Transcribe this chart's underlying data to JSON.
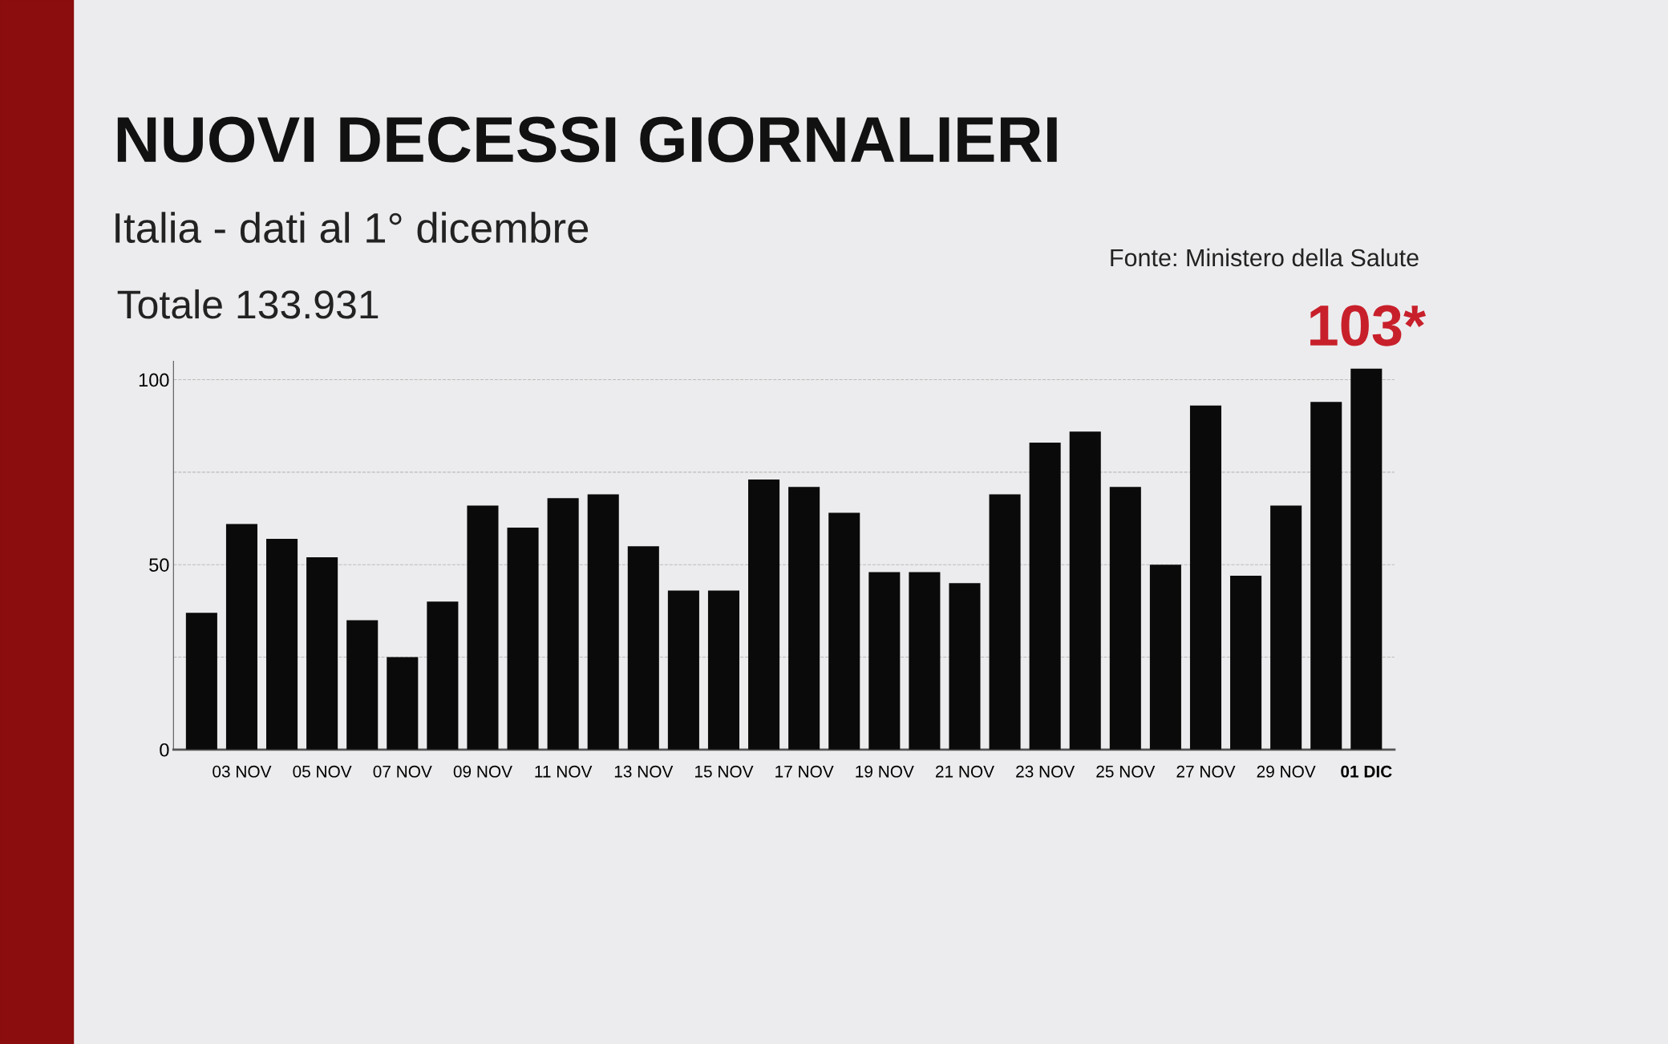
{
  "chart_data": {
    "type": "bar",
    "title": "NUOVI DECESSI GIORNALIERI",
    "subtitle": "Italia - dati al 1° dicembre",
    "annotations": [
      "Totale 133.931",
      "Fonte: Ministero della Salute"
    ],
    "categories": [
      null,
      "03 NOV",
      null,
      "05 NOV",
      null,
      "07 NOV",
      null,
      "09 NOV",
      null,
      "11 NOV",
      null,
      "13 NOV",
      null,
      "15 NOV",
      null,
      "17 NOV",
      null,
      "19 NOV",
      null,
      "21 NOV",
      null,
      "23 NOV",
      null,
      "25 NOV",
      null,
      "27 NOV",
      null,
      "29 NOV",
      null,
      "01 DIC"
    ],
    "values": [
      37,
      61,
      57,
      52,
      35,
      25,
      40,
      66,
      60,
      68,
      69,
      55,
      43,
      43,
      73,
      71,
      64,
      48,
      48,
      45,
      69,
      83,
      86,
      71,
      50,
      93,
      47,
      66,
      94,
      103
    ],
    "value_labels": [
      null,
      null,
      null,
      null,
      null,
      null,
      null,
      null,
      null,
      null,
      null,
      null,
      null,
      null,
      null,
      null,
      null,
      null,
      null,
      null,
      null,
      null,
      null,
      null,
      null,
      null,
      null,
      null,
      null,
      "103*"
    ],
    "color": "#0a0a0a",
    "ylim": [
      0,
      105
    ],
    "yticks": [
      0,
      {
        "value": 25,
        "label": null
      },
      50,
      {
        "value": 75,
        "label": null
      },
      100
    ],
    "grid": "y"
  }
}
